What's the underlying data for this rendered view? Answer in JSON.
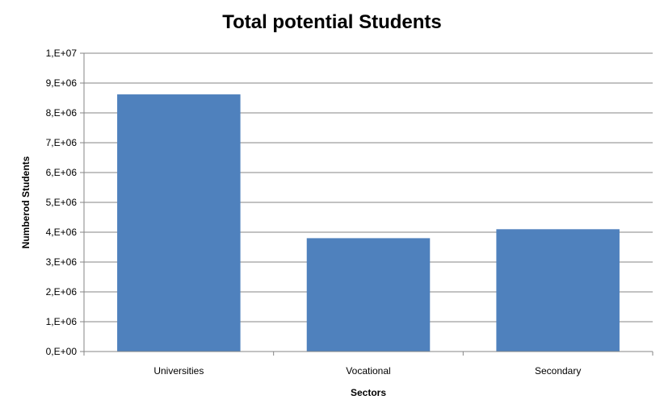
{
  "chart_data": {
    "type": "bar",
    "title": "Total potential Students",
    "xlabel": "Sectors",
    "ylabel": "Numberod Students",
    "categories": [
      "Universities",
      "Vocational",
      "Secondary"
    ],
    "values": [
      8620000,
      3800000,
      4100000
    ],
    "ylim": [
      0,
      10000000
    ],
    "ytick_values": [
      0,
      1000000,
      2000000,
      3000000,
      4000000,
      5000000,
      6000000,
      7000000,
      8000000,
      9000000,
      10000000
    ],
    "ytick_labels": [
      "0,E+00",
      "1,E+06",
      "2,E+06",
      "3,E+06",
      "4,E+06",
      "5,E+06",
      "6,E+06",
      "7,E+06",
      "8,E+06",
      "9,E+06",
      "1,E+07"
    ],
    "grid": true,
    "legend": "none",
    "bar_color": "#4F81BD",
    "grid_color": "#868686"
  }
}
